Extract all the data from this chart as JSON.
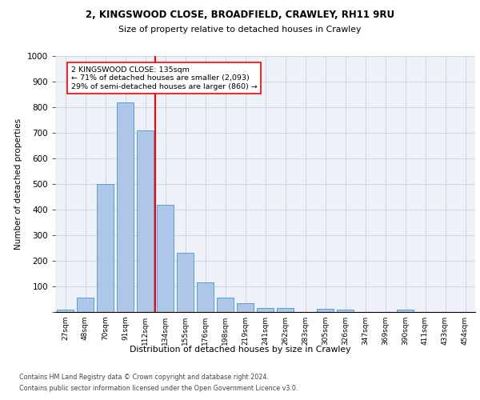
{
  "title_line1": "2, KINGSWOOD CLOSE, BROADFIELD, CRAWLEY, RH11 9RU",
  "title_line2": "Size of property relative to detached houses in Crawley",
  "xlabel": "Distribution of detached houses by size in Crawley",
  "ylabel": "Number of detached properties",
  "categories": [
    "27sqm",
    "48sqm",
    "70sqm",
    "91sqm",
    "112sqm",
    "134sqm",
    "155sqm",
    "176sqm",
    "198sqm",
    "219sqm",
    "241sqm",
    "262sqm",
    "283sqm",
    "305sqm",
    "326sqm",
    "347sqm",
    "369sqm",
    "390sqm",
    "411sqm",
    "433sqm",
    "454sqm"
  ],
  "values": [
    8,
    57,
    500,
    820,
    708,
    418,
    230,
    117,
    55,
    33,
    15,
    15,
    0,
    13,
    8,
    0,
    0,
    10,
    0,
    0,
    0
  ],
  "bar_color": "#aec6e8",
  "bar_edge_color": "#5a9fd4",
  "vline_color": "red",
  "annotation_text": "2 KINGSWOOD CLOSE: 135sqm\n← 71% of detached houses are smaller (2,093)\n29% of semi-detached houses are larger (860) →",
  "annotation_box_color": "white",
  "annotation_box_edge_color": "red",
  "ylim": [
    0,
    1000
  ],
  "yticks": [
    0,
    100,
    200,
    300,
    400,
    500,
    600,
    700,
    800,
    900,
    1000
  ],
  "footnote1": "Contains HM Land Registry data © Crown copyright and database right 2024.",
  "footnote2": "Contains public sector information licensed under the Open Government Licence v3.0.",
  "grid_color": "#c8d0dc",
  "background_color": "#eef2f8"
}
